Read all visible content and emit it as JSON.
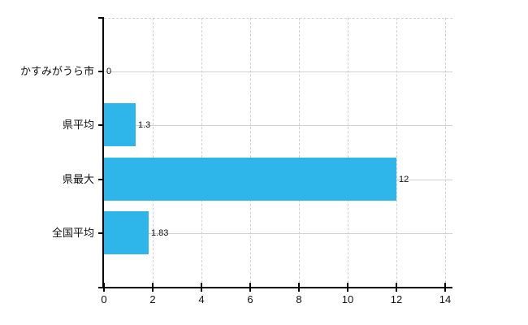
{
  "chart_data": {
    "type": "bar",
    "orientation": "horizontal",
    "title": "",
    "xlabel": "",
    "ylabel": "",
    "legend": "none",
    "categories": [
      "かすみがうら市",
      "県平均",
      "県最大",
      "全国平均"
    ],
    "values": [
      0,
      1.3,
      12,
      1.83
    ],
    "value_labels": [
      "0",
      "1.3",
      "12",
      "1.83"
    ],
    "x_tick_values": [
      0,
      2,
      4,
      6,
      8,
      10,
      12,
      14
    ],
    "x_tick_labels": [
      "0",
      "2",
      "4",
      "6",
      "8",
      "10",
      "12",
      "14"
    ],
    "xlim": [
      0,
      14.3
    ],
    "grid": {
      "vertical": "dashed",
      "horizontal": "solid-at-category-centers",
      "top_border": "dashed"
    },
    "colors": {
      "bar": "#2eb6ea",
      "axis": "#000000",
      "grid_horizontal": "#ccd4cc",
      "grid_vertical": "#d6ccd4",
      "text": "#111111",
      "background": "#ffffff"
    }
  }
}
